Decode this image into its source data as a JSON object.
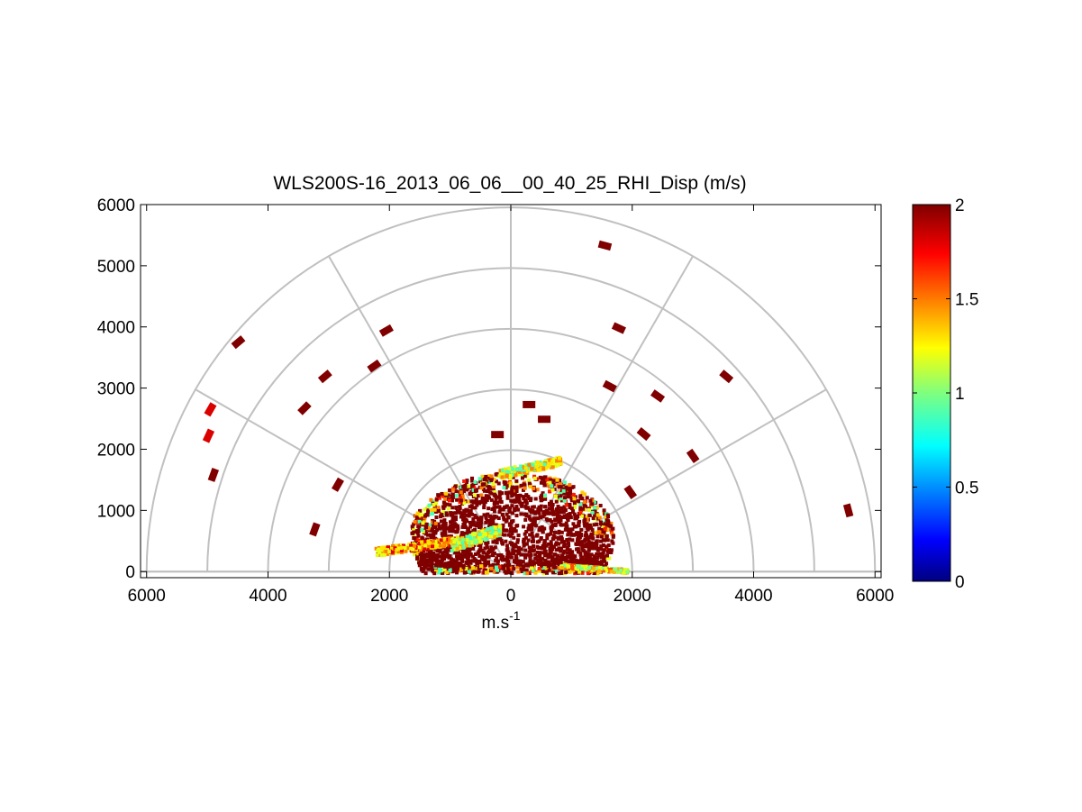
{
  "chart_data": {
    "type": "heatmap",
    "title": "WLS200S-16_2013_06_06__00_40_25_RHI_Disp (m/s)",
    "xlabel": "m.s",
    "xlabel_superscript": "-1",
    "ylabel": "",
    "xlim": [
      -6100,
      6100
    ],
    "ylim": [
      -100,
      6000
    ],
    "x_ticks": [
      -6000,
      -4000,
      -2000,
      0,
      2000,
      4000,
      6000
    ],
    "x_tick_labels": [
      "6000",
      "4000",
      "2000",
      "0",
      "2000",
      "4000",
      "6000"
    ],
    "y_ticks": [
      0,
      1000,
      2000,
      3000,
      4000,
      5000,
      6000
    ],
    "y_tick_labels": [
      "0",
      "1000",
      "2000",
      "3000",
      "4000",
      "5000",
      "6000"
    ],
    "polar_grid": {
      "range_rings": [
        1000,
        2000,
        3000,
        4000,
        5000,
        6000
      ],
      "azimuth_spokes_deg": [
        0,
        30,
        60,
        90,
        120,
        150,
        180
      ]
    },
    "colorbar": {
      "colormap": "jet",
      "range": [
        0,
        2
      ],
      "ticks": [
        0,
        0.5,
        1,
        1.5,
        2
      ],
      "tick_labels": [
        "0",
        "0.5",
        "1",
        "1.5",
        "2"
      ]
    },
    "colors": {
      "grid": "#c0c0c0",
      "max_color": "#800000",
      "accent_red": "#ff2a00"
    },
    "isolated_cells": [
      {
        "x": 1550,
        "y": 5330,
        "angle": 15,
        "value": 2.0
      },
      {
        "x": 1780,
        "y": 3980,
        "angle": 25,
        "value": 2.0
      },
      {
        "x": 1630,
        "y": 3030,
        "angle": 28,
        "value": 2.0
      },
      {
        "x": 2420,
        "y": 2870,
        "angle": 35,
        "value": 2.0
      },
      {
        "x": 3550,
        "y": 3190,
        "angle": 40,
        "value": 2.0
      },
      {
        "x": 2190,
        "y": 2250,
        "angle": 40,
        "value": 2.0
      },
      {
        "x": 3000,
        "y": 1890,
        "angle": 55,
        "value": 2.0
      },
      {
        "x": 1970,
        "y": 1300,
        "angle": 55,
        "value": 2.0
      },
      {
        "x": 5560,
        "y": 1000,
        "angle": 75,
        "value": 2.0
      },
      {
        "x": 300,
        "y": 2730,
        "angle": 0,
        "value": 2.0
      },
      {
        "x": 550,
        "y": 2490,
        "angle": 0,
        "value": 2.0
      },
      {
        "x": -220,
        "y": 2240,
        "angle": 0,
        "value": 2.0
      },
      {
        "x": -2050,
        "y": 3940,
        "angle": -30,
        "value": 2.0
      },
      {
        "x": -2250,
        "y": 3360,
        "angle": -35,
        "value": 2.0
      },
      {
        "x": -3060,
        "y": 3190,
        "angle": -40,
        "value": 2.0
      },
      {
        "x": -4490,
        "y": 3750,
        "angle": -40,
        "value": 2.0
      },
      {
        "x": -3400,
        "y": 2670,
        "angle": -45,
        "value": 2.0
      },
      {
        "x": -2850,
        "y": 1420,
        "angle": -60,
        "value": 2.0
      },
      {
        "x": -3230,
        "y": 690,
        "angle": -70,
        "value": 2.0
      },
      {
        "x": -4950,
        "y": 2650,
        "angle": -60,
        "value": 1.82
      },
      {
        "x": -4980,
        "y": 2220,
        "angle": -65,
        "value": 1.82
      },
      {
        "x": -4900,
        "y": 1580,
        "angle": -70,
        "value": 2.0
      }
    ],
    "near_field_cluster": {
      "center_x": 0,
      "center_y": 0,
      "max_range": 1950,
      "dominant_value": 2.0,
      "edge_values": [
        1.2,
        1.35,
        1.5,
        1.7,
        0.9
      ]
    },
    "low_bands": [
      {
        "x_start": -2250,
        "x_end": -900,
        "y_start": 280,
        "y_end": 600,
        "values": [
          1.3,
          1.5,
          1.2,
          1.8
        ]
      },
      {
        "x_start": -1000,
        "x_end": -200,
        "y_start": 350,
        "y_end": 800,
        "values": [
          1.2,
          0.9,
          1.0,
          1.4
        ]
      },
      {
        "x_start": -200,
        "x_end": 800,
        "y_start": 1550,
        "y_end": 1900,
        "values": [
          1.3,
          1.2,
          0.9,
          1.5
        ]
      },
      {
        "x_start": 800,
        "x_end": 1900,
        "y_start": 0,
        "y_end": 150,
        "values": [
          1.4,
          1.2,
          1.0,
          1.6
        ]
      }
    ]
  }
}
